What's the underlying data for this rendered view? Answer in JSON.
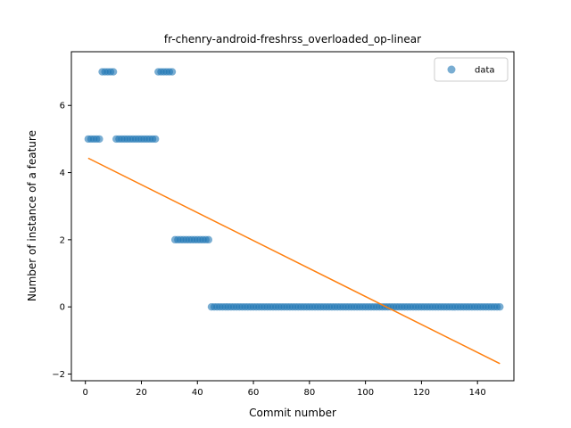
{
  "chart_data": {
    "type": "scatter",
    "title": "fr-chenry-android-freshrss_overloaded_op-linear",
    "xlabel": "Commit number",
    "ylabel": "Number of instance of a feature",
    "xlim": [
      -5,
      153
    ],
    "ylim": [
      -2.2,
      7.6
    ],
    "xticks": [
      0,
      20,
      40,
      60,
      80,
      100,
      120,
      140
    ],
    "yticks": [
      -2,
      0,
      2,
      4,
      6
    ],
    "grid": false,
    "legend": {
      "position": "top-right",
      "entries": [
        "data"
      ]
    },
    "colors": {
      "data": "#1f77b4",
      "fit": "#ff7f0e"
    },
    "series": [
      {
        "name": "data",
        "kind": "scatter",
        "points": [
          [
            1,
            5
          ],
          [
            2,
            5
          ],
          [
            3,
            5
          ],
          [
            4,
            5
          ],
          [
            5,
            5
          ],
          [
            6,
            7
          ],
          [
            7,
            7
          ],
          [
            8,
            7
          ],
          [
            9,
            7
          ],
          [
            10,
            7
          ],
          [
            11,
            5
          ],
          [
            12,
            5
          ],
          [
            13,
            5
          ],
          [
            14,
            5
          ],
          [
            15,
            5
          ],
          [
            16,
            5
          ],
          [
            17,
            5
          ],
          [
            18,
            5
          ],
          [
            19,
            5
          ],
          [
            20,
            5
          ],
          [
            21,
            5
          ],
          [
            22,
            5
          ],
          [
            23,
            5
          ],
          [
            24,
            5
          ],
          [
            25,
            5
          ],
          [
            26,
            7
          ],
          [
            27,
            7
          ],
          [
            28,
            7
          ],
          [
            29,
            7
          ],
          [
            30,
            7
          ],
          [
            31,
            7
          ],
          [
            32,
            2
          ],
          [
            33,
            2
          ],
          [
            34,
            2
          ],
          [
            35,
            2
          ],
          [
            36,
            2
          ],
          [
            37,
            2
          ],
          [
            38,
            2
          ],
          [
            39,
            2
          ],
          [
            40,
            2
          ],
          [
            41,
            2
          ],
          [
            42,
            2
          ],
          [
            43,
            2
          ],
          [
            44,
            2
          ],
          [
            45,
            0
          ],
          [
            46,
            0
          ],
          [
            47,
            0
          ],
          [
            48,
            0
          ],
          [
            49,
            0
          ],
          [
            50,
            0
          ],
          [
            51,
            0
          ],
          [
            52,
            0
          ],
          [
            53,
            0
          ],
          [
            54,
            0
          ],
          [
            55,
            0
          ],
          [
            56,
            0
          ],
          [
            57,
            0
          ],
          [
            58,
            0
          ],
          [
            59,
            0
          ],
          [
            60,
            0
          ],
          [
            61,
            0
          ],
          [
            62,
            0
          ],
          [
            63,
            0
          ],
          [
            64,
            0
          ],
          [
            65,
            0
          ],
          [
            66,
            0
          ],
          [
            67,
            0
          ],
          [
            68,
            0
          ],
          [
            69,
            0
          ],
          [
            70,
            0
          ],
          [
            71,
            0
          ],
          [
            72,
            0
          ],
          [
            73,
            0
          ],
          [
            74,
            0
          ],
          [
            75,
            0
          ],
          [
            76,
            0
          ],
          [
            77,
            0
          ],
          [
            78,
            0
          ],
          [
            79,
            0
          ],
          [
            80,
            0
          ],
          [
            81,
            0
          ],
          [
            82,
            0
          ],
          [
            83,
            0
          ],
          [
            84,
            0
          ],
          [
            85,
            0
          ],
          [
            86,
            0
          ],
          [
            87,
            0
          ],
          [
            88,
            0
          ],
          [
            89,
            0
          ],
          [
            90,
            0
          ],
          [
            91,
            0
          ],
          [
            92,
            0
          ],
          [
            93,
            0
          ],
          [
            94,
            0
          ],
          [
            95,
            0
          ],
          [
            96,
            0
          ],
          [
            97,
            0
          ],
          [
            98,
            0
          ],
          [
            99,
            0
          ],
          [
            100,
            0
          ],
          [
            101,
            0
          ],
          [
            102,
            0
          ],
          [
            103,
            0
          ],
          [
            104,
            0
          ],
          [
            105,
            0
          ],
          [
            106,
            0
          ],
          [
            107,
            0
          ],
          [
            108,
            0
          ],
          [
            109,
            0
          ],
          [
            110,
            0
          ],
          [
            111,
            0
          ],
          [
            112,
            0
          ],
          [
            113,
            0
          ],
          [
            114,
            0
          ],
          [
            115,
            0
          ],
          [
            116,
            0
          ],
          [
            117,
            0
          ],
          [
            118,
            0
          ],
          [
            119,
            0
          ],
          [
            120,
            0
          ],
          [
            121,
            0
          ],
          [
            122,
            0
          ],
          [
            123,
            0
          ],
          [
            124,
            0
          ],
          [
            125,
            0
          ],
          [
            126,
            0
          ],
          [
            127,
            0
          ],
          [
            128,
            0
          ],
          [
            129,
            0
          ],
          [
            130,
            0
          ],
          [
            131,
            0
          ],
          [
            132,
            0
          ],
          [
            133,
            0
          ],
          [
            134,
            0
          ],
          [
            135,
            0
          ],
          [
            136,
            0
          ],
          [
            137,
            0
          ],
          [
            138,
            0
          ],
          [
            139,
            0
          ],
          [
            140,
            0
          ],
          [
            141,
            0
          ],
          [
            142,
            0
          ],
          [
            143,
            0
          ],
          [
            144,
            0
          ],
          [
            145,
            0
          ],
          [
            146,
            0
          ],
          [
            147,
            0
          ],
          [
            148,
            0
          ]
        ]
      },
      {
        "kind": "line",
        "points": [
          [
            1,
            4.43
          ],
          [
            148,
            -1.69
          ]
        ]
      }
    ]
  }
}
